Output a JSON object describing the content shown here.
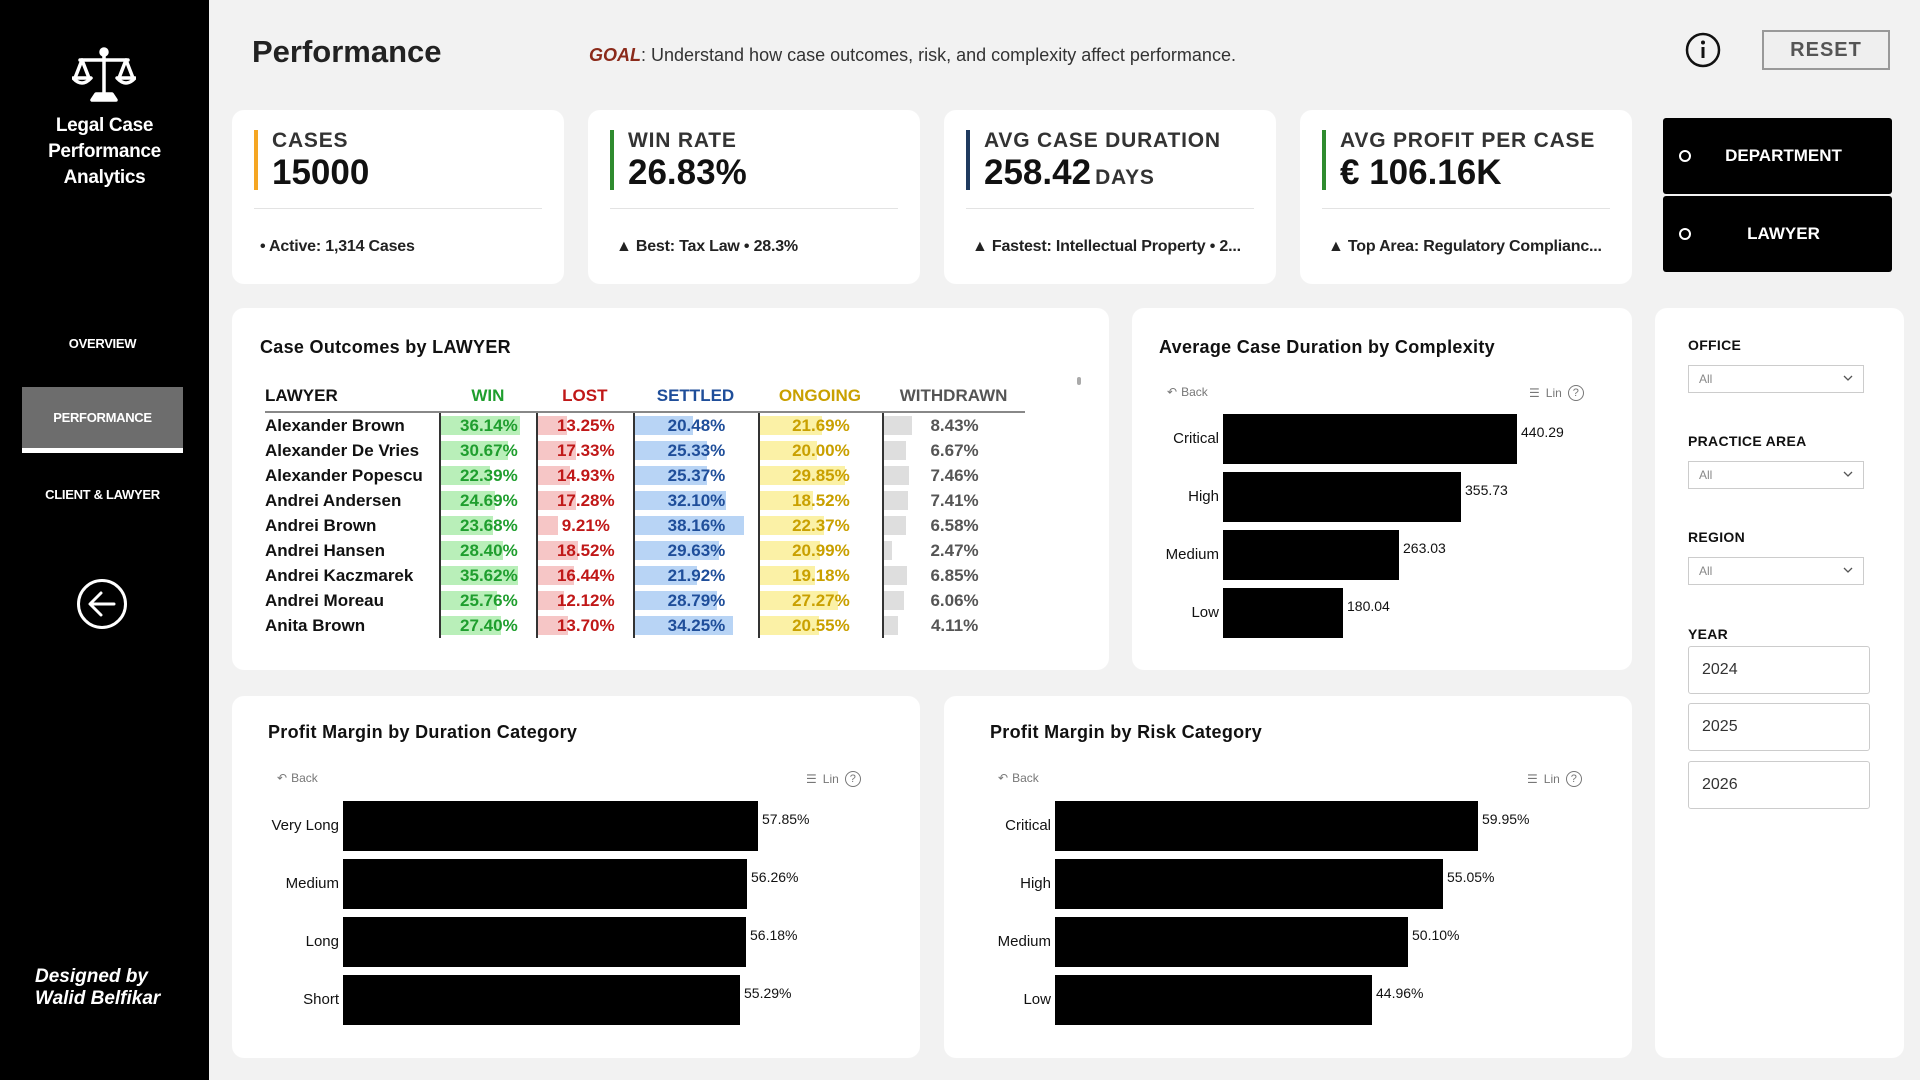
{
  "sidebar": {
    "title_line1": "Legal Case",
    "title_line2": "Performance",
    "title_line3": "Analytics",
    "nav": {
      "overview": "OVERVIEW",
      "performance": "PERFORMANCE",
      "client_lawyer": "CLIENT & LAWYER"
    },
    "designed_line1": "Designed by",
    "designed_line2": "Walid Belfikar",
    "icons": {
      "logo": "scales-of-justice-icon",
      "back": "arrow-left-circle-icon"
    }
  },
  "header": {
    "title": "Performance",
    "goal_key": "GOAL",
    "goal_text": ": Understand how case outcomes, risk, and complexity affect performance.",
    "reset_label": "RESET",
    "icons": {
      "info": "info-circle-icon"
    }
  },
  "kpis": {
    "cases": {
      "label": "CASES",
      "value": "15000",
      "sub": "• Active: 1,314 Cases",
      "color": "#f5a623"
    },
    "win_rate": {
      "label": "WIN RATE",
      "value": "26.83%",
      "sub": "▲ Best: Tax Law • 28.3%",
      "color": "#2e8b2e"
    },
    "avg_duration": {
      "label": "AVG CASE DURATION",
      "value": "258.42",
      "unit": "DAYS",
      "sub": "▲ Fastest: Intellectual Property • 2...",
      "color": "#1f3a5f"
    },
    "avg_profit": {
      "label": "AVG PROFIT PER CASE",
      "value": "€ 106.16K",
      "sub": "▲ Top Area: Regulatory Complianc...",
      "color": "#2e8b2e"
    }
  },
  "toggle": {
    "department": "DEPARTMENT",
    "lawyer": "LAWYER"
  },
  "outcomes_table": {
    "title": "Case Outcomes by LAWYER",
    "headers": {
      "lawyer": "LAWYER",
      "win": "WIN",
      "lost": "LOST",
      "settled": "SETTLED",
      "ongoing": "ONGOING",
      "withdrawn": "WITHDRAWN"
    },
    "header_colors": {
      "win": "#1f9e2e",
      "lost": "#c01818",
      "settled": "#1f4e9a",
      "ongoing": "#c9a000",
      "withdrawn": "#555555"
    },
    "fill_colors": {
      "win": "#b9efb9",
      "lost": "#f6c6c6",
      "settled": "#b8d4f5",
      "ongoing": "#fbf1a6",
      "withdrawn": "#dedede"
    },
    "rows": [
      {
        "name": "Alexander Brown",
        "win": "36.14%",
        "lost": "13.25%",
        "settled": "20.48%",
        "ongoing": "21.69%",
        "withdrawn": "8.43%"
      },
      {
        "name": "Alexander De Vries",
        "win": "30.67%",
        "lost": "17.33%",
        "settled": "25.33%",
        "ongoing": "20.00%",
        "withdrawn": "6.67%"
      },
      {
        "name": "Alexander Popescu",
        "win": "22.39%",
        "lost": "14.93%",
        "settled": "25.37%",
        "ongoing": "29.85%",
        "withdrawn": "7.46%"
      },
      {
        "name": "Andrei Andersen",
        "win": "24.69%",
        "lost": "17.28%",
        "settled": "32.10%",
        "ongoing": "18.52%",
        "withdrawn": "7.41%"
      },
      {
        "name": "Andrei Brown",
        "win": "23.68%",
        "lost": "9.21%",
        "settled": "38.16%",
        "ongoing": "22.37%",
        "withdrawn": "6.58%"
      },
      {
        "name": "Andrei Hansen",
        "win": "28.40%",
        "lost": "18.52%",
        "settled": "29.63%",
        "ongoing": "20.99%",
        "withdrawn": "2.47%"
      },
      {
        "name": "Andrei Kaczmarek",
        "win": "35.62%",
        "lost": "16.44%",
        "settled": "21.92%",
        "ongoing": "19.18%",
        "withdrawn": "6.85%"
      },
      {
        "name": "Andrei Moreau",
        "win": "25.76%",
        "lost": "12.12%",
        "settled": "28.79%",
        "ongoing": "27.27%",
        "withdrawn": "6.06%"
      },
      {
        "name": "Anita Brown",
        "win": "27.40%",
        "lost": "13.70%",
        "settled": "34.25%",
        "ongoing": "20.55%",
        "withdrawn": "4.11%"
      }
    ]
  },
  "toolbar": {
    "back": "Back",
    "lin": "Lin",
    "help": "?"
  },
  "chart_data": [
    {
      "type": "bar",
      "orientation": "horizontal",
      "title": "Average Case Duration by Complexity",
      "categories": [
        "Critical",
        "High",
        "Medium",
        "Low"
      ],
      "values": [
        440.29,
        355.73,
        263.03,
        180.04
      ],
      "labels": [
        "440.29",
        "355.73",
        "263.03",
        "180.04"
      ],
      "color": "#000000"
    },
    {
      "type": "bar",
      "orientation": "horizontal",
      "title": "Profit Margin by Duration Category",
      "categories": [
        "Very Long",
        "Medium",
        "Long",
        "Short"
      ],
      "values": [
        57.85,
        56.26,
        56.18,
        55.29
      ],
      "labels": [
        "57.85%",
        "56.26%",
        "56.18%",
        "55.29%"
      ],
      "color": "#000000"
    },
    {
      "type": "bar",
      "orientation": "horizontal",
      "title": "Profit Margin by Risk Category",
      "categories": [
        "Critical",
        "High",
        "Medium",
        "Low"
      ],
      "values": [
        59.95,
        55.05,
        50.1,
        44.96
      ],
      "labels": [
        "59.95%",
        "55.05%",
        "50.10%",
        "44.96%"
      ],
      "color": "#000000"
    }
  ],
  "filters": {
    "office": {
      "label": "OFFICE",
      "value": "All"
    },
    "practice_area": {
      "label": "PRACTICE AREA",
      "value": "All"
    },
    "region": {
      "label": "REGION",
      "value": "All"
    },
    "year": {
      "label": "YEAR",
      "options": [
        "2024",
        "2025",
        "2026"
      ]
    }
  }
}
